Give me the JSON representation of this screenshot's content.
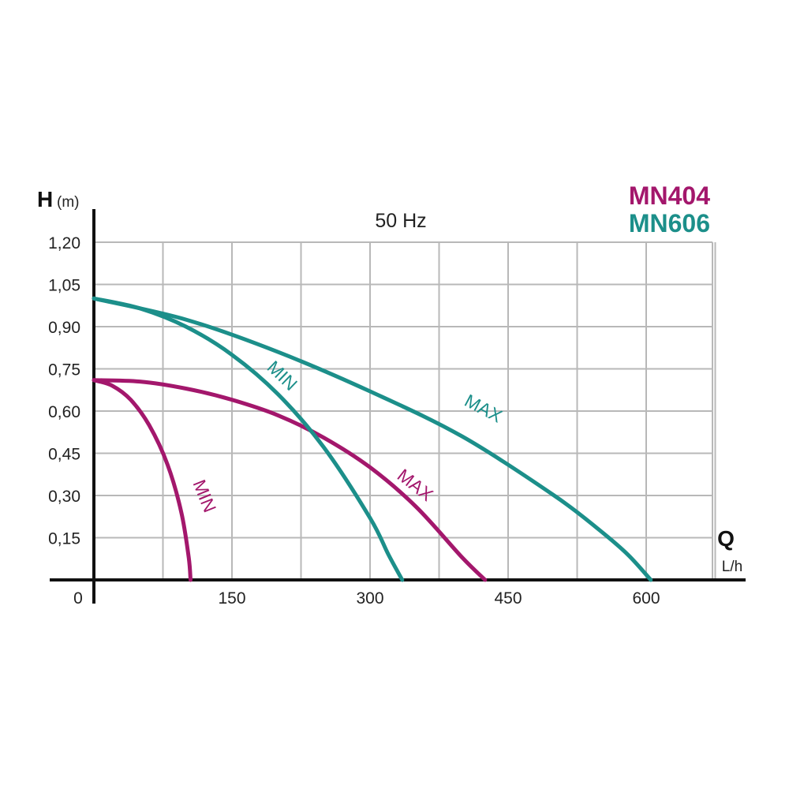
{
  "chart_data": {
    "type": "line",
    "title": "50 Hz",
    "ylabel": "H",
    "yunit": "(m)",
    "xlabel": "Q",
    "xunit": "L/h",
    "origin_label": "0",
    "xlim": [
      0,
      675
    ],
    "ylim": [
      0,
      1.2
    ],
    "x_ticks": [
      150,
      300,
      450,
      600
    ],
    "x_tick_labels": [
      "150",
      "300",
      "450",
      "600"
    ],
    "y_ticks": [
      0.15,
      0.3,
      0.45,
      0.6,
      0.75,
      0.9,
      1.05,
      1.2
    ],
    "y_tick_labels": [
      "0,15",
      "0,30",
      "0,45",
      "0,60",
      "0,75",
      "0,90",
      "1,05",
      "1,20"
    ],
    "grid": true,
    "colors": {
      "MN404": "#a3176c",
      "MN606": "#1c8f8a"
    },
    "legend": [
      {
        "name": "MN404",
        "color": "#a3176c"
      },
      {
        "name": "MN606",
        "color": "#1c8f8a"
      }
    ],
    "series": [
      {
        "model": "MN404",
        "label": "MIN",
        "color": "#a3176c",
        "label_at": [
          114,
          0.29
        ],
        "label_angle": 68,
        "x": [
          0,
          20,
          40,
          60,
          80,
          95,
          103,
          105
        ],
        "y": [
          0.71,
          0.69,
          0.64,
          0.55,
          0.41,
          0.24,
          0.08,
          0.0
        ]
      },
      {
        "model": "MN404",
        "label": "MAX",
        "color": "#a3176c",
        "label_at": [
          345,
          0.32
        ],
        "label_angle": 38,
        "x": [
          0,
          50,
          100,
          150,
          200,
          250,
          300,
          350,
          400,
          425
        ],
        "y": [
          0.71,
          0.705,
          0.68,
          0.64,
          0.585,
          0.505,
          0.4,
          0.26,
          0.08,
          0.0
        ]
      },
      {
        "model": "MN606",
        "label": "MIN",
        "color": "#1c8f8a",
        "label_at": [
          200,
          0.71
        ],
        "label_angle": 44,
        "x": [
          0,
          50,
          100,
          150,
          200,
          250,
          300,
          320,
          335
        ],
        "y": [
          1.0,
          0.965,
          0.9,
          0.8,
          0.66,
          0.47,
          0.22,
          0.09,
          0.0
        ]
      },
      {
        "model": "MN606",
        "label": "MAX",
        "color": "#1c8f8a",
        "label_at": [
          420,
          0.59
        ],
        "label_angle": 28,
        "x": [
          0,
          100,
          200,
          300,
          400,
          500,
          550,
          580,
          605
        ],
        "y": [
          1.0,
          0.925,
          0.81,
          0.67,
          0.51,
          0.3,
          0.175,
          0.09,
          0.0
        ]
      }
    ]
  }
}
